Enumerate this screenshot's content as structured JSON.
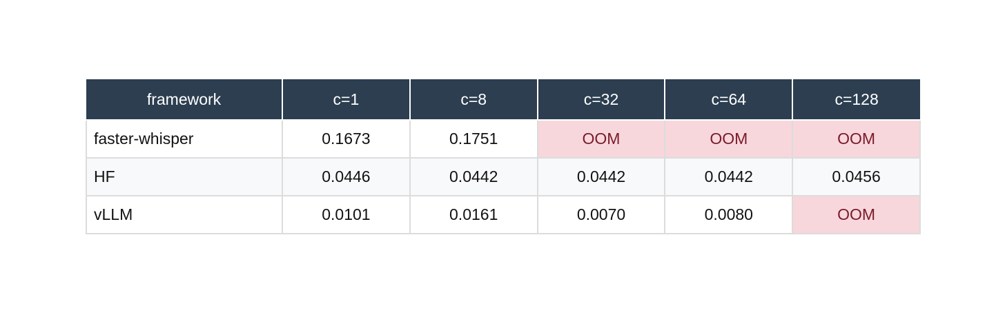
{
  "table": {
    "header": [
      "framework",
      "c=1",
      "c=8",
      "c=32",
      "c=64",
      "c=128"
    ],
    "rows": [
      [
        "faster-whisper",
        "0.1673",
        "0.1751",
        "OOM",
        "OOM",
        "OOM"
      ],
      [
        "HF",
        "0.0446",
        "0.0442",
        "0.0442",
        "0.0442",
        "0.0456"
      ],
      [
        "vLLM",
        "0.0101",
        "0.0161",
        "0.0070",
        "0.0080",
        "OOM"
      ]
    ]
  }
}
